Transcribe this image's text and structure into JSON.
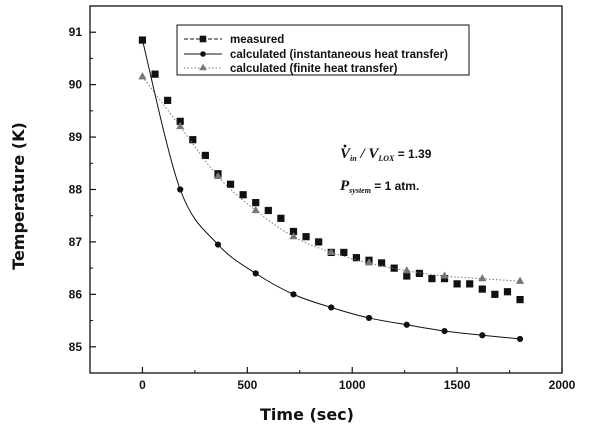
{
  "chart_data": {
    "type": "scatter",
    "xlabel": "Time (sec)",
    "ylabel": "Temperature (K)",
    "xlim": [
      -250,
      2000
    ],
    "ylim": [
      84.5,
      91.5
    ],
    "xticks": [
      0,
      500,
      1000,
      1500,
      2000
    ],
    "yticks": [
      85,
      86,
      87,
      88,
      89,
      90,
      91
    ],
    "grid": false,
    "legend_position": "top-right",
    "series": [
      {
        "name": "measured",
        "marker": "square",
        "line": "dashed",
        "color": "#111111",
        "x": [
          0,
          60,
          120,
          180,
          240,
          300,
          360,
          420,
          480,
          540,
          600,
          660,
          720,
          780,
          840,
          900,
          960,
          1020,
          1080,
          1140,
          1200,
          1260,
          1320,
          1380,
          1440,
          1500,
          1560,
          1620,
          1680,
          1740,
          1800
        ],
        "y": [
          90.85,
          90.2,
          89.7,
          89.3,
          88.95,
          88.65,
          88.3,
          88.1,
          87.9,
          87.75,
          87.6,
          87.45,
          87.2,
          87.1,
          87.0,
          86.8,
          86.8,
          86.7,
          86.65,
          86.6,
          86.5,
          86.35,
          86.4,
          86.3,
          86.3,
          86.2,
          86.2,
          86.1,
          86.0,
          86.05,
          85.9
        ]
      },
      {
        "name": "calculated (instantaneous heat transfer)",
        "marker": "circle",
        "line": "solid",
        "color": "#111111",
        "x": [
          0,
          180,
          360,
          540,
          720,
          900,
          1080,
          1260,
          1440,
          1620,
          1800
        ],
        "y": [
          90.85,
          88.0,
          86.95,
          86.4,
          86.0,
          85.75,
          85.55,
          85.42,
          85.3,
          85.22,
          85.15
        ]
      },
      {
        "name": "calculated (finite heat transfer)",
        "marker": "triangle",
        "line": "dotted",
        "color": "#777777",
        "x": [
          0,
          180,
          360,
          540,
          720,
          900,
          1080,
          1260,
          1440,
          1620,
          1800
        ],
        "y": [
          90.15,
          89.2,
          88.25,
          87.6,
          87.1,
          86.8,
          86.6,
          86.45,
          86.35,
          86.3,
          86.25
        ]
      }
    ],
    "annotations": {
      "ratio_V": "V",
      "ratio_sub1": "in",
      "ratio_slash": " / V",
      "ratio_sub2": "LOX",
      "ratio_value": " = 1.39",
      "pressure_P": "P",
      "pressure_sub": "system",
      "pressure_value": " = 1 atm."
    }
  }
}
